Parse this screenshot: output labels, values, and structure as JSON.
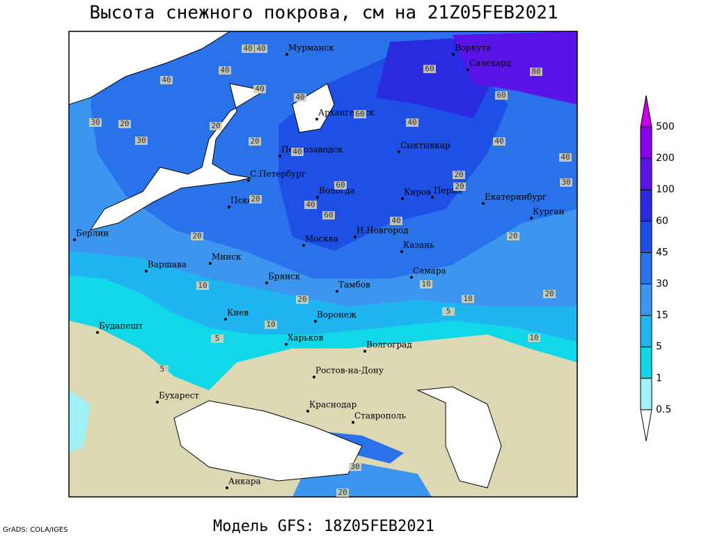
{
  "title": "Высота снежного покрова, см на 21Z05FEB2021",
  "footer": "Модель GFS: 18Z05FEB2021",
  "credit": "GrADS: COLA/IGES",
  "legend": {
    "levels": [
      0.5,
      1,
      5,
      15,
      30,
      45,
      60,
      100,
      200,
      500
    ],
    "colors": [
      "#a0f0f8",
      "#10d8e8",
      "#20b4f0",
      "#3c96f0",
      "#2a72ea",
      "#1e50e6",
      "#2a2ae0",
      "#5a14e8",
      "#8c00f0",
      "#c800e8"
    ]
  },
  "cities": [
    "Мурманск",
    "Воркута",
    "Салехард",
    "Архангельск",
    "Петрозаводск",
    "Сыктывкар",
    "С.Петербург",
    "Вологда",
    "Киров",
    "Пермь",
    "Екатеринбург",
    "Псков",
    "Курган",
    "Берлин",
    "Москва",
    "Н.Новгород",
    "Казань",
    "Минск",
    "Варшава",
    "Самара",
    "Брянск",
    "Тамбов",
    "Киев",
    "Воронеж",
    "Будапешт",
    "Харьков",
    "Волгоград",
    "Ростов-на-Дону",
    "Бухарест",
    "Краснодар",
    "Ставрополь",
    "Анкара"
  ],
  "contour_labels": [
    40,
    40,
    40,
    60,
    80,
    60,
    40,
    40,
    20,
    30,
    20,
    20,
    40,
    60,
    40,
    40,
    60,
    40,
    20,
    60,
    20,
    40,
    40,
    20,
    30,
    20,
    30,
    10,
    10,
    20,
    20,
    10,
    5,
    10,
    5,
    20,
    10,
    5,
    40,
    30,
    20
  ]
}
